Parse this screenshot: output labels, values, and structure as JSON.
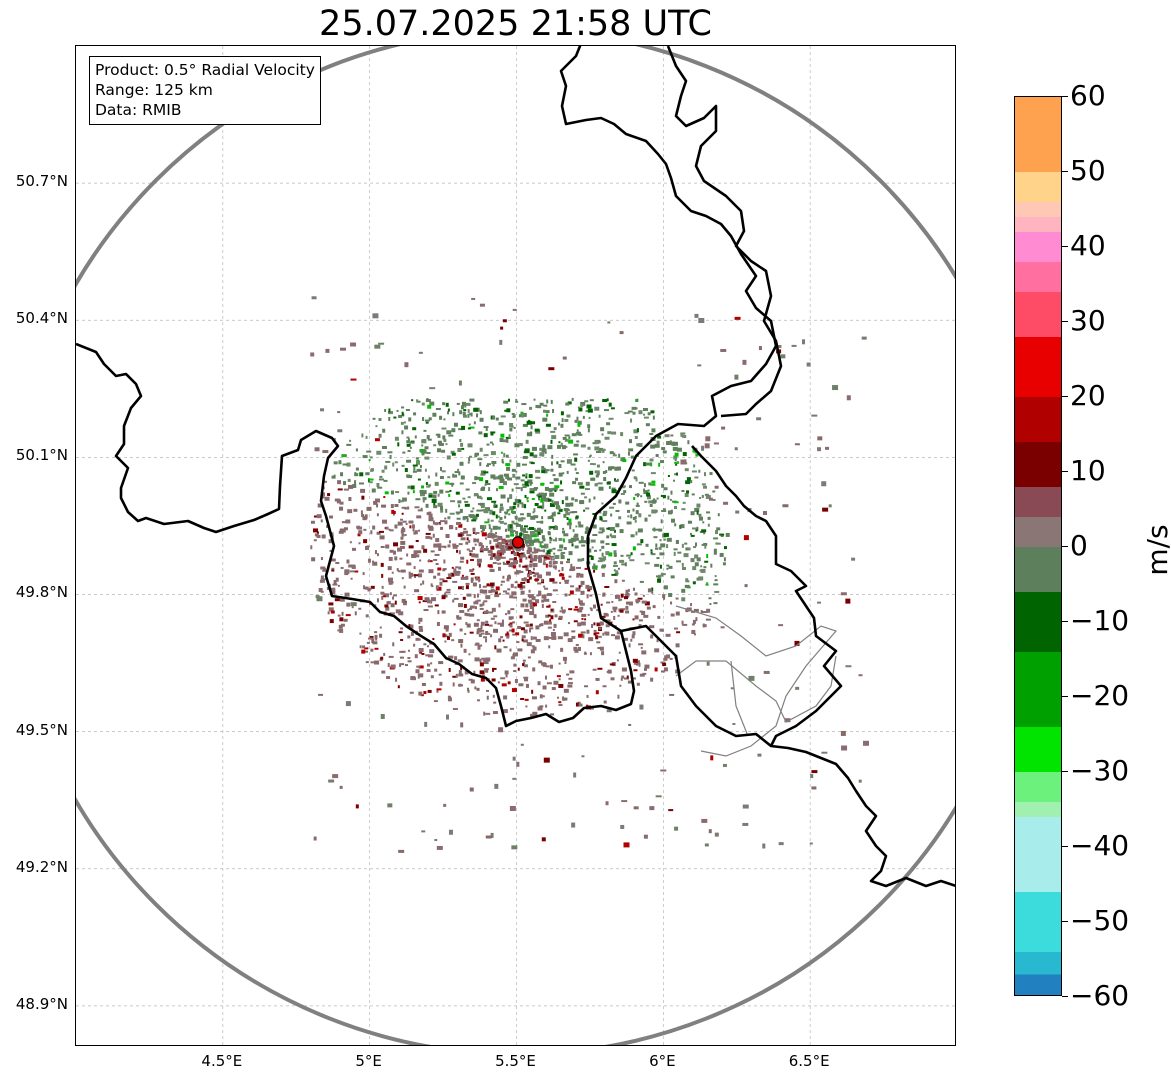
{
  "title": "25.07.2025 21:58 UTC",
  "info": {
    "product": "Product: 0.5° Radial Velocity",
    "range": "Range: 125 km",
    "source": "Data: RMIB"
  },
  "axes": {
    "lat_labels": [
      "50.7°N",
      "50.4°N",
      "50.1°N",
      "49.8°N",
      "49.5°N",
      "49.2°N",
      "48.9°N"
    ],
    "lat_values": [
      50.7,
      50.4,
      50.1,
      49.8,
      49.5,
      49.2,
      48.9
    ],
    "lon_labels": [
      "4.5°E",
      "5°E",
      "5.5°E",
      "6°E",
      "6.5°E"
    ],
    "lon_values": [
      4.5,
      5.0,
      5.5,
      6.0,
      6.5
    ],
    "lon_range": [
      4.0,
      7.0
    ],
    "lat_range": [
      48.81,
      51.0
    ]
  },
  "radar": {
    "lon": 5.505,
    "lat": 49.914,
    "marker_color": "#e00000",
    "range_ring_color": "#808080"
  },
  "colorbar": {
    "unit": "m/s",
    "min": -60,
    "max": 60,
    "tick_labels": [
      "60",
      "50",
      "40",
      "30",
      "20",
      "10",
      "0",
      "−10",
      "−20",
      "−30",
      "−40",
      "−50",
      "−60"
    ],
    "tick_values": [
      60,
      50,
      40,
      30,
      20,
      10,
      0,
      -10,
      -20,
      -30,
      -40,
      -50,
      -60
    ],
    "stops": [
      {
        "from": 50,
        "to": 60,
        "color": "#ffa24f"
      },
      {
        "from": 46,
        "to": 50,
        "color": "#ffd38a"
      },
      {
        "from": 44,
        "to": 46,
        "color": "#ffc8b4"
      },
      {
        "from": 42,
        "to": 44,
        "color": "#ffb4c0"
      },
      {
        "from": 38,
        "to": 42,
        "color": "#ff8cd2"
      },
      {
        "from": 34,
        "to": 38,
        "color": "#ff70a0"
      },
      {
        "from": 28,
        "to": 34,
        "color": "#ff4c66"
      },
      {
        "from": 20,
        "to": 28,
        "color": "#e80000"
      },
      {
        "from": 14,
        "to": 20,
        "color": "#b00000"
      },
      {
        "from": 8,
        "to": 14,
        "color": "#7a0000"
      },
      {
        "from": 4,
        "to": 8,
        "color": "#8a4a55"
      },
      {
        "from": 0,
        "to": 4,
        "color": "#8a7775"
      },
      {
        "from": -6,
        "to": 0,
        "color": "#5e7f5c"
      },
      {
        "from": -14,
        "to": -6,
        "color": "#006400"
      },
      {
        "from": -24,
        "to": -14,
        "color": "#00a000"
      },
      {
        "from": -30,
        "to": -24,
        "color": "#00e400"
      },
      {
        "from": -34,
        "to": -30,
        "color": "#6cf27c"
      },
      {
        "from": -36,
        "to": -34,
        "color": "#a0f0b0"
      },
      {
        "from": -46,
        "to": -36,
        "color": "#a8ecec"
      },
      {
        "from": -54,
        "to": -46,
        "color": "#3cdcdc"
      },
      {
        "from": -57,
        "to": -54,
        "color": "#28b8d0"
      },
      {
        "from": -60,
        "to": -57,
        "color": "#2080c0"
      }
    ]
  }
}
